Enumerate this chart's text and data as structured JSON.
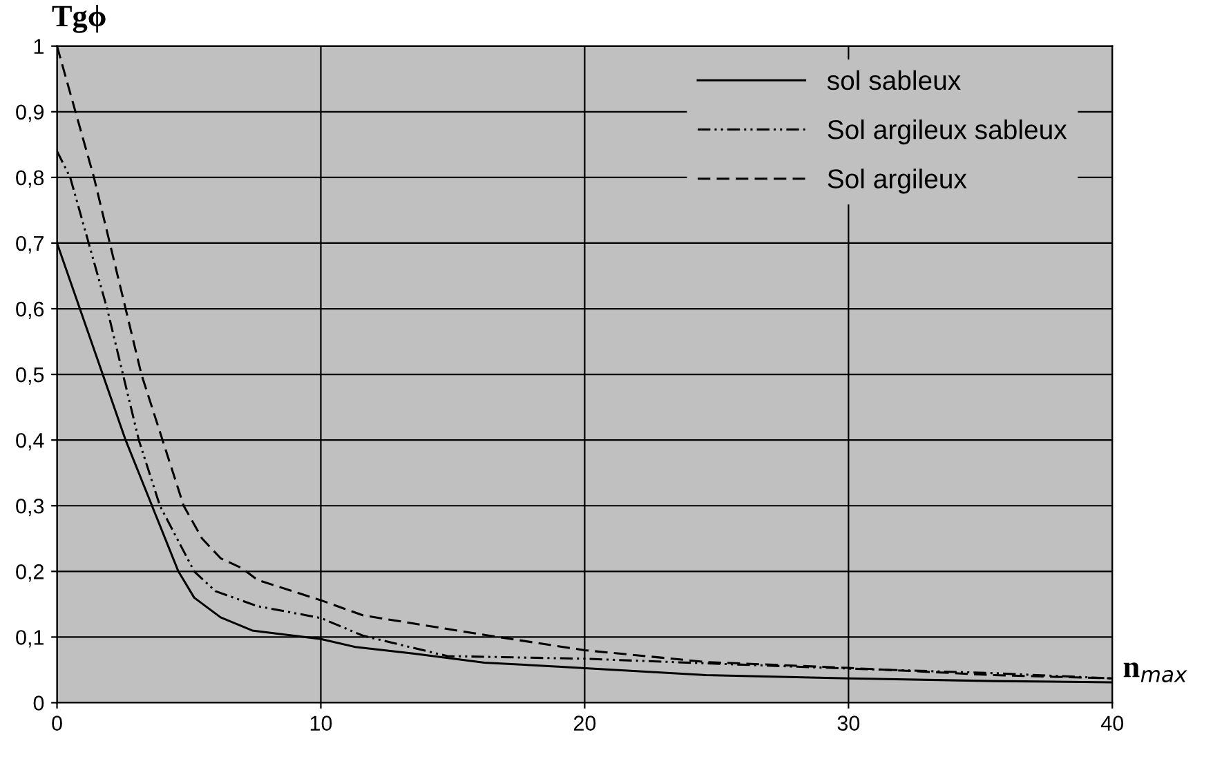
{
  "chart_data": {
    "type": "line",
    "ylabel": "Tgϕ",
    "xlabel": "n$_{max}$",
    "xlim": [
      0,
      40
    ],
    "ylim": [
      0,
      1
    ],
    "xticks": [
      0,
      10,
      20,
      30,
      40
    ],
    "yticks": [
      0,
      {
        "value": 0.1,
        "label": "0,1"
      },
      {
        "value": 0.2,
        "label": "0,2"
      },
      {
        "value": 0.3,
        "label": "0,3"
      },
      {
        "value": 0.4,
        "label": "0,4"
      },
      {
        "value": 0.5,
        "label": "0,5"
      },
      {
        "value": 0.6,
        "label": "0,6"
      },
      {
        "value": 0.7,
        "label": "0,7"
      },
      {
        "value": 0.8,
        "label": "0,8"
      },
      {
        "value": 0.9,
        "label": "0,9"
      },
      1
    ],
    "grid": true,
    "legend": "top right",
    "series": [
      {
        "name": "sol sableux",
        "color": "#000000",
        "line_style": "solid",
        "x": [
          0,
          2.6,
          3.6,
          4.6,
          5.2,
          6.2,
          7.4,
          10,
          11.3,
          13.5,
          16.2,
          19,
          20.7,
          24.6,
          30,
          35.5,
          40
        ],
        "values": [
          0.7,
          0.4,
          0.3,
          0.2,
          0.16,
          0.13,
          0.11,
          0.097,
          0.085,
          0.075,
          0.061,
          0.055,
          0.051,
          0.042,
          0.037,
          0.033,
          0.031
        ]
      },
      {
        "name": "Sol argileux sableux",
        "color": "#000000",
        "line_style": "dashdot",
        "x": [
          0,
          0.5,
          1.2,
          1.9,
          2.5,
          3.1,
          3.9,
          5.2,
          6,
          7.6,
          10,
          11.6,
          14.8,
          20,
          24.6,
          30,
          35.5,
          40
        ],
        "values": [
          0.84,
          0.8,
          0.7,
          0.6,
          0.5,
          0.4,
          0.3,
          0.2,
          0.17,
          0.147,
          0.129,
          0.102,
          0.071,
          0.067,
          0.06,
          0.052,
          0.045,
          0.037
        ]
      },
      {
        "name": "Sol argileux",
        "color": "#000000",
        "line_style": "dashed",
        "x": [
          0,
          0.7,
          1.4,
          2,
          2.6,
          3.2,
          4,
          4.8,
          5.5,
          6.2,
          7,
          7.6,
          10,
          11.6,
          16.4,
          20,
          24.6,
          30,
          35.5,
          40
        ],
        "values": [
          1.0,
          0.9,
          0.8,
          0.7,
          0.6,
          0.5,
          0.4,
          0.3,
          0.25,
          0.22,
          0.205,
          0.187,
          0.156,
          0.133,
          0.102,
          0.08,
          0.062,
          0.053,
          0.042,
          0.037
        ]
      }
    ]
  }
}
